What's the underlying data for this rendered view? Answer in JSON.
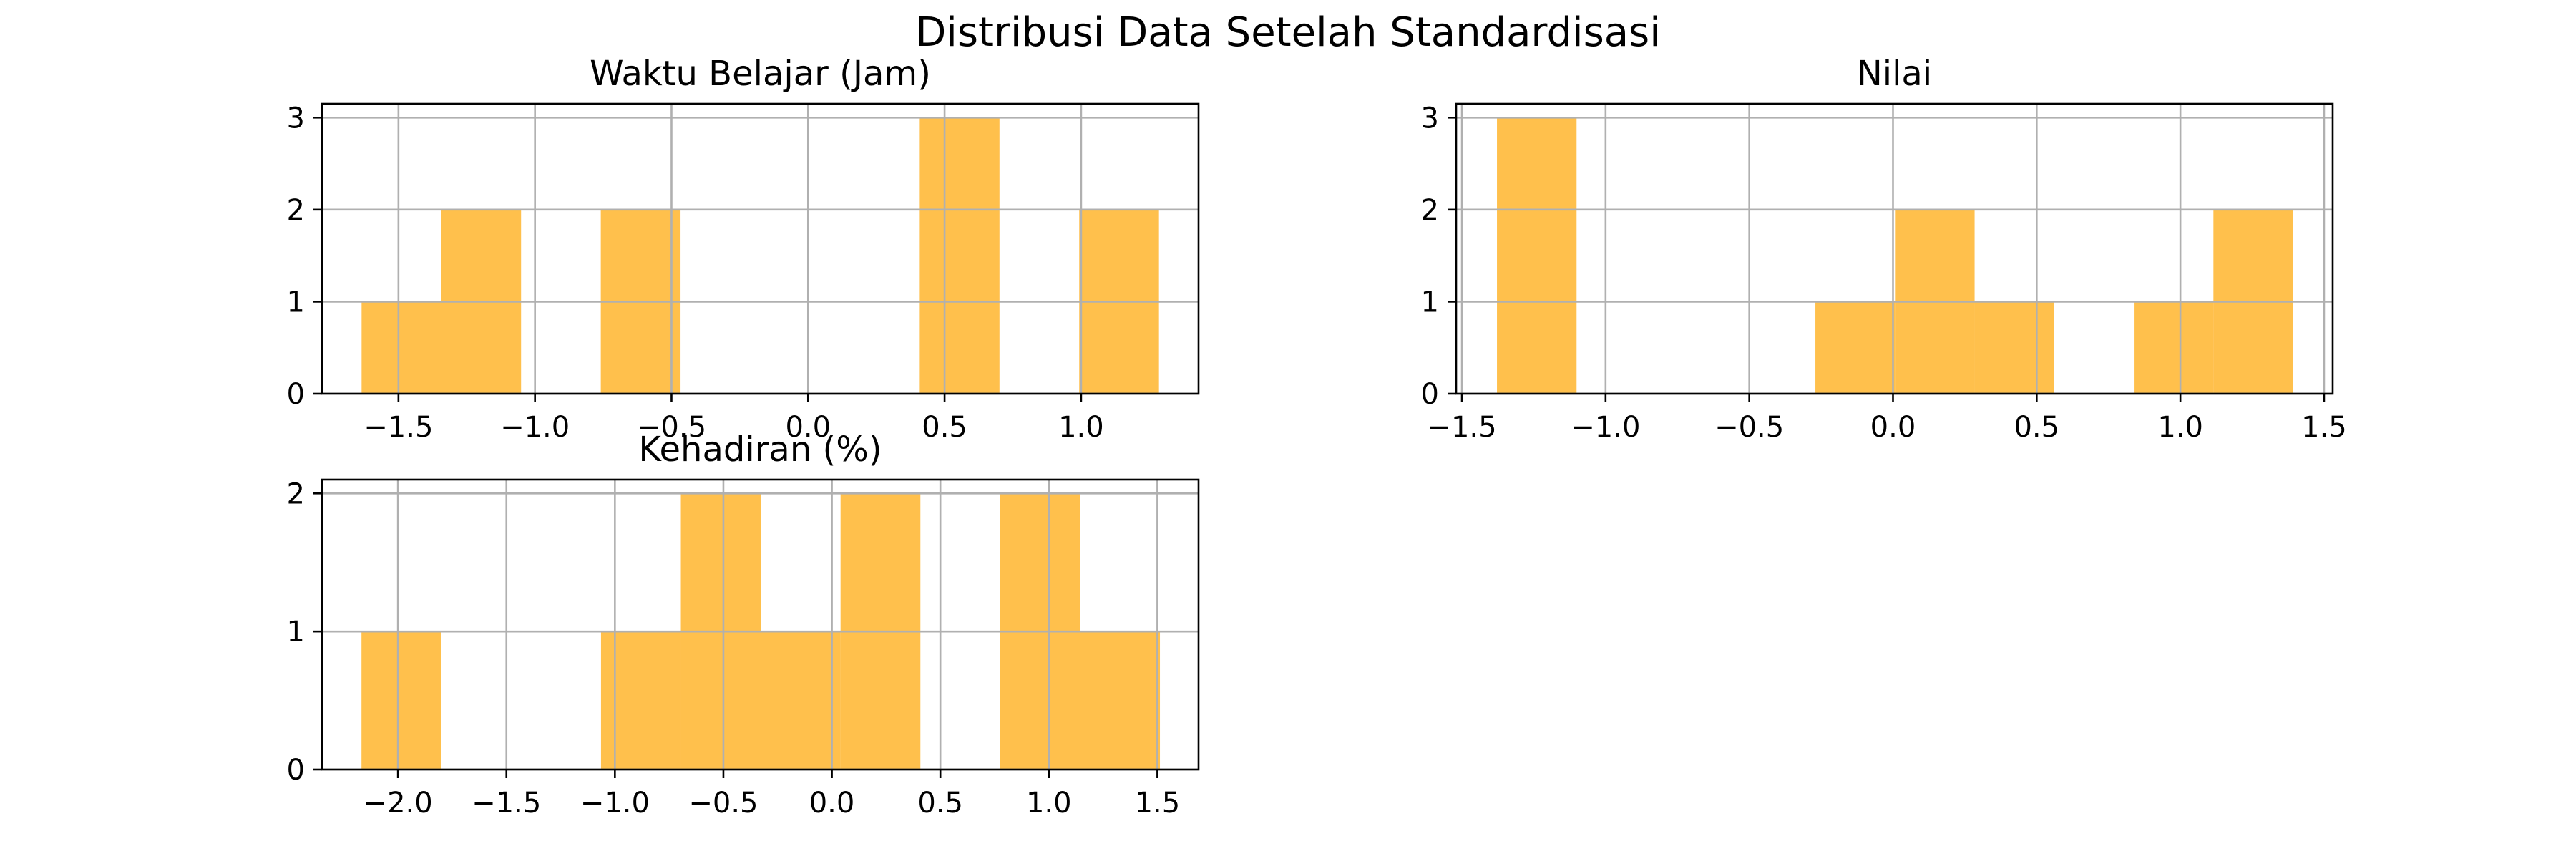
{
  "title": "Distribusi Data Setelah Standardisasi",
  "colors": {
    "bar": "#ffa500",
    "bar_alpha": 0.7,
    "grid": "#b0b0b0"
  },
  "chart_data": [
    {
      "type": "histogram",
      "title": "Waktu Belajar (Jam)",
      "xlim": [
        -1.78,
        1.43
      ],
      "ylim": [
        0,
        3.15
      ],
      "xticks": [
        -1.5,
        -1.0,
        -0.5,
        0.0,
        0.5,
        1.0
      ],
      "xtick_labels": [
        "−1.5",
        "−1.0",
        "−0.5",
        "0.0",
        "0.5",
        "1.0"
      ],
      "yticks": [
        0,
        1,
        2,
        3
      ],
      "ytick_labels": [
        "0",
        "1",
        "2",
        "3"
      ],
      "grid": true,
      "bins": [
        {
          "x0": -1.635,
          "x1": -1.343,
          "count": 1
        },
        {
          "x0": -1.343,
          "x1": -1.051,
          "count": 2
        },
        {
          "x0": -1.051,
          "x1": -0.759,
          "count": 0
        },
        {
          "x0": -0.759,
          "x1": -0.467,
          "count": 2
        },
        {
          "x0": -0.467,
          "x1": -0.175,
          "count": 0
        },
        {
          "x0": -0.175,
          "x1": 0.117,
          "count": 0
        },
        {
          "x0": 0.117,
          "x1": 0.409,
          "count": 0
        },
        {
          "x0": 0.409,
          "x1": 0.701,
          "count": 3
        },
        {
          "x0": 0.701,
          "x1": 0.993,
          "count": 0
        },
        {
          "x0": 0.993,
          "x1": 1.285,
          "count": 2
        }
      ]
    },
    {
      "type": "histogram",
      "title": "Nilai",
      "xlim": [
        -1.52,
        1.53
      ],
      "ylim": [
        0,
        3.15
      ],
      "xticks": [
        -1.5,
        -1.0,
        -0.5,
        0.0,
        0.5,
        1.0,
        1.5
      ],
      "xtick_labels": [
        "−1.5",
        "−1.0",
        "−0.5",
        "0.0",
        "0.5",
        "1.0",
        "1.5"
      ],
      "yticks": [
        0,
        1,
        2,
        3
      ],
      "ytick_labels": [
        "0",
        "1",
        "2",
        "3"
      ],
      "grid": true,
      "bins": [
        {
          "x0": -1.378,
          "x1": -1.101,
          "count": 3
        },
        {
          "x0": -1.101,
          "x1": -0.824,
          "count": 0
        },
        {
          "x0": -0.824,
          "x1": -0.547,
          "count": 0
        },
        {
          "x0": -0.547,
          "x1": -0.27,
          "count": 0
        },
        {
          "x0": -0.27,
          "x1": 0.007,
          "count": 1
        },
        {
          "x0": 0.007,
          "x1": 0.284,
          "count": 2
        },
        {
          "x0": 0.284,
          "x1": 0.561,
          "count": 1
        },
        {
          "x0": 0.561,
          "x1": 0.838,
          "count": 0
        },
        {
          "x0": 0.838,
          "x1": 1.115,
          "count": 1
        },
        {
          "x0": 1.115,
          "x1": 1.392,
          "count": 2
        }
      ]
    },
    {
      "type": "histogram",
      "title": "Kehadiran (%)",
      "xlim": [
        -2.35,
        1.69
      ],
      "ylim": [
        0,
        2.1
      ],
      "xticks": [
        -2.0,
        -1.5,
        -1.0,
        -0.5,
        0.0,
        0.5,
        1.0,
        1.5
      ],
      "xtick_labels": [
        "−2.0",
        "−1.5",
        "−1.0",
        "−0.5",
        "0.0",
        "0.5",
        "1.0",
        "1.5"
      ],
      "yticks": [
        0,
        1,
        2
      ],
      "ytick_labels": [
        "0",
        "1",
        "2"
      ],
      "grid": true,
      "bins": [
        {
          "x0": -2.168,
          "x1": -1.8,
          "count": 1
        },
        {
          "x0": -1.8,
          "x1": -1.432,
          "count": 0
        },
        {
          "x0": -1.432,
          "x1": -1.064,
          "count": 0
        },
        {
          "x0": -1.064,
          "x1": -0.696,
          "count": 1
        },
        {
          "x0": -0.696,
          "x1": -0.328,
          "count": 2
        },
        {
          "x0": -0.328,
          "x1": 0.04,
          "count": 1
        },
        {
          "x0": 0.04,
          "x1": 0.408,
          "count": 2
        },
        {
          "x0": 0.408,
          "x1": 0.776,
          "count": 0
        },
        {
          "x0": 0.776,
          "x1": 1.144,
          "count": 2
        },
        {
          "x0": 1.144,
          "x1": 1.512,
          "count": 1
        }
      ]
    }
  ]
}
